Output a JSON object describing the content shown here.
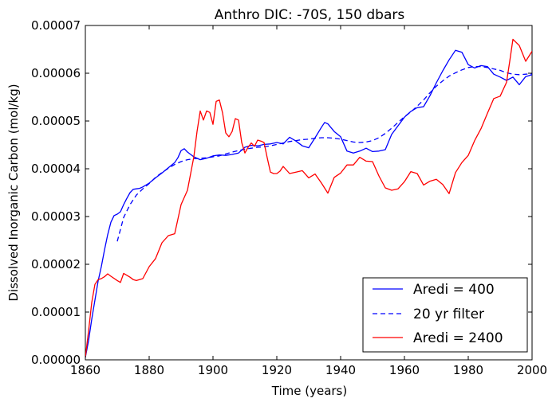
{
  "chart_data": {
    "type": "line",
    "title": "Anthro DIC: -70S, 150 dbars",
    "xlabel": "Time (years)",
    "ylabel": "Dissolved Inorganic Carbon (mol/kg)",
    "xlim": [
      1860,
      2000
    ],
    "ylim": [
      0,
      7e-05
    ],
    "xticks": [
      "1860",
      "1880",
      "1900",
      "1920",
      "1940",
      "1960",
      "1980",
      "2000"
    ],
    "yticks": [
      "0.00000",
      "0.00001",
      "0.00002",
      "0.00003",
      "0.00004",
      "0.00005",
      "0.00006",
      "0.00007"
    ],
    "legend_position": "lower-right",
    "grid": false,
    "series": [
      {
        "name": "Aredi = 400",
        "color": "#0000ff",
        "style": "solid",
        "x": [
          1860,
          1861,
          1862,
          1863,
          1864,
          1865,
          1866,
          1867,
          1868,
          1869,
          1870,
          1871,
          1872,
          1873,
          1874,
          1875,
          1876,
          1877,
          1878,
          1880,
          1882,
          1884,
          1886,
          1888,
          1889,
          1890,
          1891,
          1892,
          1894,
          1896,
          1898,
          1900,
          1902,
          1904,
          1906,
          1908,
          1910,
          1912,
          1914,
          1916,
          1918,
          1920,
          1922,
          1924,
          1926,
          1928,
          1930,
          1932,
          1934,
          1935,
          1936,
          1938,
          1940,
          1942,
          1944,
          1946,
          1948,
          1950,
          1952,
          1954,
          1956,
          1958,
          1960,
          1962,
          1964,
          1966,
          1968,
          1970,
          1972,
          1974,
          1976,
          1978,
          1980,
          1982,
          1984,
          1986,
          1988,
          1990,
          1992,
          1994,
          1996,
          1998,
          2000
        ],
        "y": [
          5e-07,
          4e-06,
          8.5e-06,
          1.25e-05,
          1.65e-05,
          1.95e-05,
          2.3e-05,
          2.62e-05,
          2.88e-05,
          3.02e-05,
          3.05e-05,
          3.1e-05,
          3.25e-05,
          3.38e-05,
          3.5e-05,
          3.57e-05,
          3.58e-05,
          3.59e-05,
          3.62e-05,
          3.7e-05,
          3.81e-05,
          3.91e-05,
          4.02e-05,
          4.13e-05,
          4.23e-05,
          4.38e-05,
          4.42e-05,
          4.35e-05,
          4.25e-05,
          4.19e-05,
          4.22e-05,
          4.27e-05,
          4.29e-05,
          4.28e-05,
          4.3e-05,
          4.33e-05,
          4.45e-05,
          4.49e-05,
          4.48e-05,
          4.51e-05,
          4.52e-05,
          4.55e-05,
          4.52e-05,
          4.66e-05,
          4.58e-05,
          4.48e-05,
          4.44e-05,
          4.65e-05,
          4.87e-05,
          4.97e-05,
          4.94e-05,
          4.78e-05,
          4.67e-05,
          4.37e-05,
          4.33e-05,
          4.37e-05,
          4.43e-05,
          4.36e-05,
          4.37e-05,
          4.4e-05,
          4.72e-05,
          4.9e-05,
          5.08e-05,
          5.2e-05,
          5.28e-05,
          5.3e-05,
          5.53e-05,
          5.8e-05,
          6.05e-05,
          6.28e-05,
          6.48e-05,
          6.44e-05,
          6.18e-05,
          6.11e-05,
          6.16e-05,
          6.14e-05,
          5.98e-05,
          5.92e-05,
          5.85e-05,
          5.92e-05,
          5.76e-05,
          5.93e-05,
          5.97e-05
        ]
      },
      {
        "name": "20 yr filter",
        "color": "#0000ff",
        "style": "dashed",
        "x": [
          1870,
          1872,
          1874,
          1876,
          1878,
          1880,
          1882,
          1884,
          1886,
          1888,
          1890,
          1892,
          1894,
          1896,
          1898,
          1900,
          1902,
          1904,
          1906,
          1908,
          1910,
          1912,
          1914,
          1916,
          1918,
          1920,
          1922,
          1924,
          1926,
          1928,
          1930,
          1932,
          1934,
          1936,
          1938,
          1940,
          1942,
          1944,
          1946,
          1948,
          1950,
          1952,
          1954,
          1956,
          1958,
          1960,
          1962,
          1964,
          1966,
          1968,
          1970,
          1972,
          1974,
          1976,
          1978,
          1980,
          1982,
          1984,
          1986,
          1988,
          1990,
          1992,
          1994,
          1996,
          1998,
          2000
        ],
        "y": [
          2.48e-05,
          2.98e-05,
          3.25e-05,
          3.45e-05,
          3.58e-05,
          3.69e-05,
          3.82e-05,
          3.92e-05,
          4.01e-05,
          4.09e-05,
          4.15e-05,
          4.19e-05,
          4.21e-05,
          4.22e-05,
          4.23e-05,
          4.25e-05,
          4.27e-05,
          4.31e-05,
          4.35e-05,
          4.38e-05,
          4.41e-05,
          4.43e-05,
          4.45e-05,
          4.46e-05,
          4.48e-05,
          4.51e-05,
          4.54e-05,
          4.57e-05,
          4.59e-05,
          4.61e-05,
          4.62e-05,
          4.64e-05,
          4.65e-05,
          4.65e-05,
          4.64e-05,
          4.62e-05,
          4.59e-05,
          4.56e-05,
          4.55e-05,
          4.56e-05,
          4.59e-05,
          4.65e-05,
          4.74e-05,
          4.85e-05,
          4.97e-05,
          5.09e-05,
          5.19e-05,
          5.31e-05,
          5.44e-05,
          5.59e-05,
          5.73e-05,
          5.84e-05,
          5.94e-05,
          6.01e-05,
          6.07e-05,
          6.12e-05,
          6.14e-05,
          6.14e-05,
          6.12e-05,
          6.09e-05,
          6.06e-05,
          6.01e-05,
          5.98e-05,
          5.97e-05,
          5.98e-05,
          5.99e-05
        ]
      },
      {
        "name": "Aredi = 2400",
        "color": "#ff0000",
        "style": "solid",
        "x": [
          1860,
          1861,
          1862,
          1863,
          1864,
          1865,
          1866,
          1867,
          1868,
          1870,
          1871,
          1872,
          1874,
          1875,
          1876,
          1878,
          1880,
          1882,
          1884,
          1886,
          1888,
          1890,
          1892,
          1894,
          1895,
          1896,
          1897,
          1898,
          1899,
          1900,
          1901,
          1902,
          1903,
          1904,
          1905,
          1906,
          1907,
          1908,
          1909,
          1910,
          1911,
          1912,
          1913,
          1914,
          1915,
          1916,
          1917,
          1918,
          1919,
          1920,
          1921,
          1922,
          1924,
          1926,
          1928,
          1930,
          1932,
          1934,
          1936,
          1938,
          1940,
          1942,
          1944,
          1946,
          1948,
          1950,
          1952,
          1954,
          1956,
          1958,
          1960,
          1962,
          1964,
          1966,
          1968,
          1970,
          1972,
          1974,
          1976,
          1978,
          1980,
          1982,
          1984,
          1986,
          1988,
          1990,
          1992,
          1993,
          1994,
          1996,
          1998,
          2000
        ],
        "y": [
          5e-07,
          6e-06,
          1.2e-05,
          1.58e-05,
          1.68e-05,
          1.7e-05,
          1.74e-05,
          1.8e-05,
          1.75e-05,
          1.66e-05,
          1.62e-05,
          1.81e-05,
          1.73e-05,
          1.68e-05,
          1.66e-05,
          1.7e-05,
          1.95e-05,
          2.12e-05,
          2.45e-05,
          2.6e-05,
          2.64e-05,
          3.25e-05,
          3.55e-05,
          4.25e-05,
          4.78e-05,
          5.21e-05,
          5.02e-05,
          5.21e-05,
          5.18e-05,
          4.93e-05,
          5.41e-05,
          5.44e-05,
          5.17e-05,
          4.75e-05,
          4.67e-05,
          4.78e-05,
          5.05e-05,
          5.02e-05,
          4.55e-05,
          4.33e-05,
          4.45e-05,
          4.54e-05,
          4.47e-05,
          4.6e-05,
          4.58e-05,
          4.55e-05,
          4.23e-05,
          3.93e-05,
          3.9e-05,
          3.9e-05,
          3.95e-05,
          4.05e-05,
          3.9e-05,
          3.93e-05,
          3.96e-05,
          3.81e-05,
          3.89e-05,
          3.7e-05,
          3.49e-05,
          3.82e-05,
          3.91e-05,
          4.08e-05,
          4.08e-05,
          4.24e-05,
          4.16e-05,
          4.15e-05,
          3.85e-05,
          3.6e-05,
          3.55e-05,
          3.58e-05,
          3.73e-05,
          3.94e-05,
          3.9e-05,
          3.66e-05,
          3.74e-05,
          3.78e-05,
          3.67e-05,
          3.48e-05,
          3.92e-05,
          4.13e-05,
          4.28e-05,
          4.59e-05,
          4.84e-05,
          5.16e-05,
          5.47e-05,
          5.52e-05,
          5.81e-05,
          6.25e-05,
          6.71e-05,
          6.58e-05,
          6.25e-05,
          6.46e-05
        ]
      }
    ]
  }
}
